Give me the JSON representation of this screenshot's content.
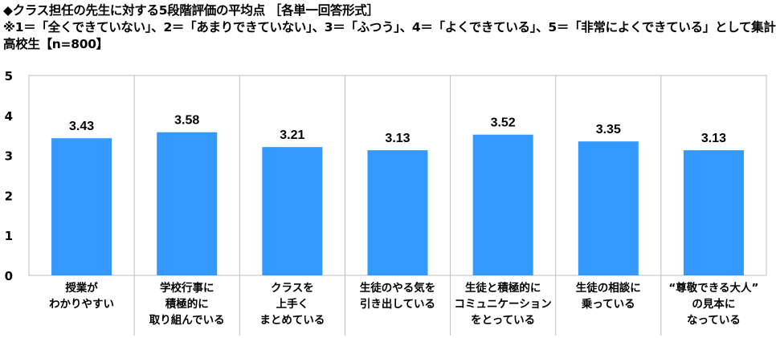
{
  "header": {
    "title": "◆クラス担任の先生に対する5段階評価の平均点 ［各単一回答形式］",
    "scale_note": "※1＝「全くできていない」、2＝「あまりできていない」、3＝「ふつう」、4＝「よくできている」、5＝「非常によくできている」として集計",
    "sample": "高校生【n=800】"
  },
  "chart_data": {
    "type": "bar",
    "title": "",
    "xlabel": "",
    "ylabel": "",
    "ylim": [
      0,
      5
    ],
    "yticks": [
      "0",
      "1",
      "2",
      "3",
      "4",
      "5"
    ],
    "grid": false,
    "bar_color": "#3399ff",
    "categories": [
      "授業が\nわかりやすい",
      "学校行事に\n積極的に\n取り組んでいる",
      "クラスを\n上手く\nまとめている",
      "生徒のやる気を\n引き出している",
      "生徒と積極的に\nコミュニケーション\nをとっている",
      "生徒の相談に\n乗っている",
      "“尊敬できる大人”\nの見本に\nなっている"
    ],
    "values": [
      3.43,
      3.58,
      3.21,
      3.13,
      3.52,
      3.35,
      3.13
    ],
    "value_labels": [
      "3.43",
      "3.58",
      "3.21",
      "3.13",
      "3.52",
      "3.35",
      "3.13"
    ]
  }
}
